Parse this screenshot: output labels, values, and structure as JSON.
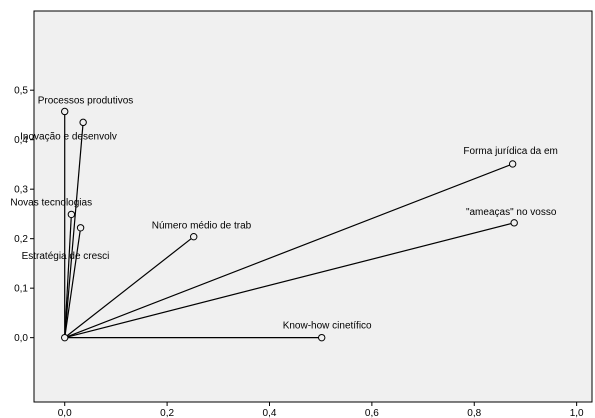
{
  "chart_data": {
    "type": "scatter",
    "title": "",
    "xlabel": "",
    "ylabel": "",
    "xlim": [
      -0.06,
      1.03
    ],
    "ylim": [
      -0.13,
      0.66
    ],
    "x_ticks": [
      0.0,
      0.2,
      0.4,
      0.6,
      0.8,
      1.0
    ],
    "x_tick_labels": [
      "0,0",
      "0,2",
      "0,4",
      "0,6",
      "0,8",
      "1,0"
    ],
    "y_ticks": [
      0.0,
      0.1,
      0.2,
      0.3,
      0.4,
      0.5
    ],
    "y_tick_labels": [
      "0,0",
      "0,1",
      "0,2",
      "0,3",
      "0,4",
      "0,5"
    ],
    "grid": false,
    "vectors_from_origin": true,
    "points": [
      {
        "label": "Processos produtivos",
        "x": 0.0,
        "y": 0.457
      },
      {
        "label": "Inovação e desenvolv",
        "x": 0.036,
        "y": 0.435
      },
      {
        "label": "Novas tecnologias",
        "x": 0.013,
        "y": 0.249
      },
      {
        "label": "Estratégia de cresci",
        "x": 0.031,
        "y": 0.222
      },
      {
        "label": "Número médio de trab",
        "x": 0.252,
        "y": 0.204
      },
      {
        "label": "Forma jurídica da em",
        "x": 0.875,
        "y": 0.351
      },
      {
        "label": "\"ameaças\" no vosso",
        "x": 0.878,
        "y": 0.232
      },
      {
        "label": "Know-how cinetífico",
        "x": 0.502,
        "y": 0.0
      },
      {
        "label": "",
        "x": 0.0,
        "y": 0.0
      }
    ]
  }
}
